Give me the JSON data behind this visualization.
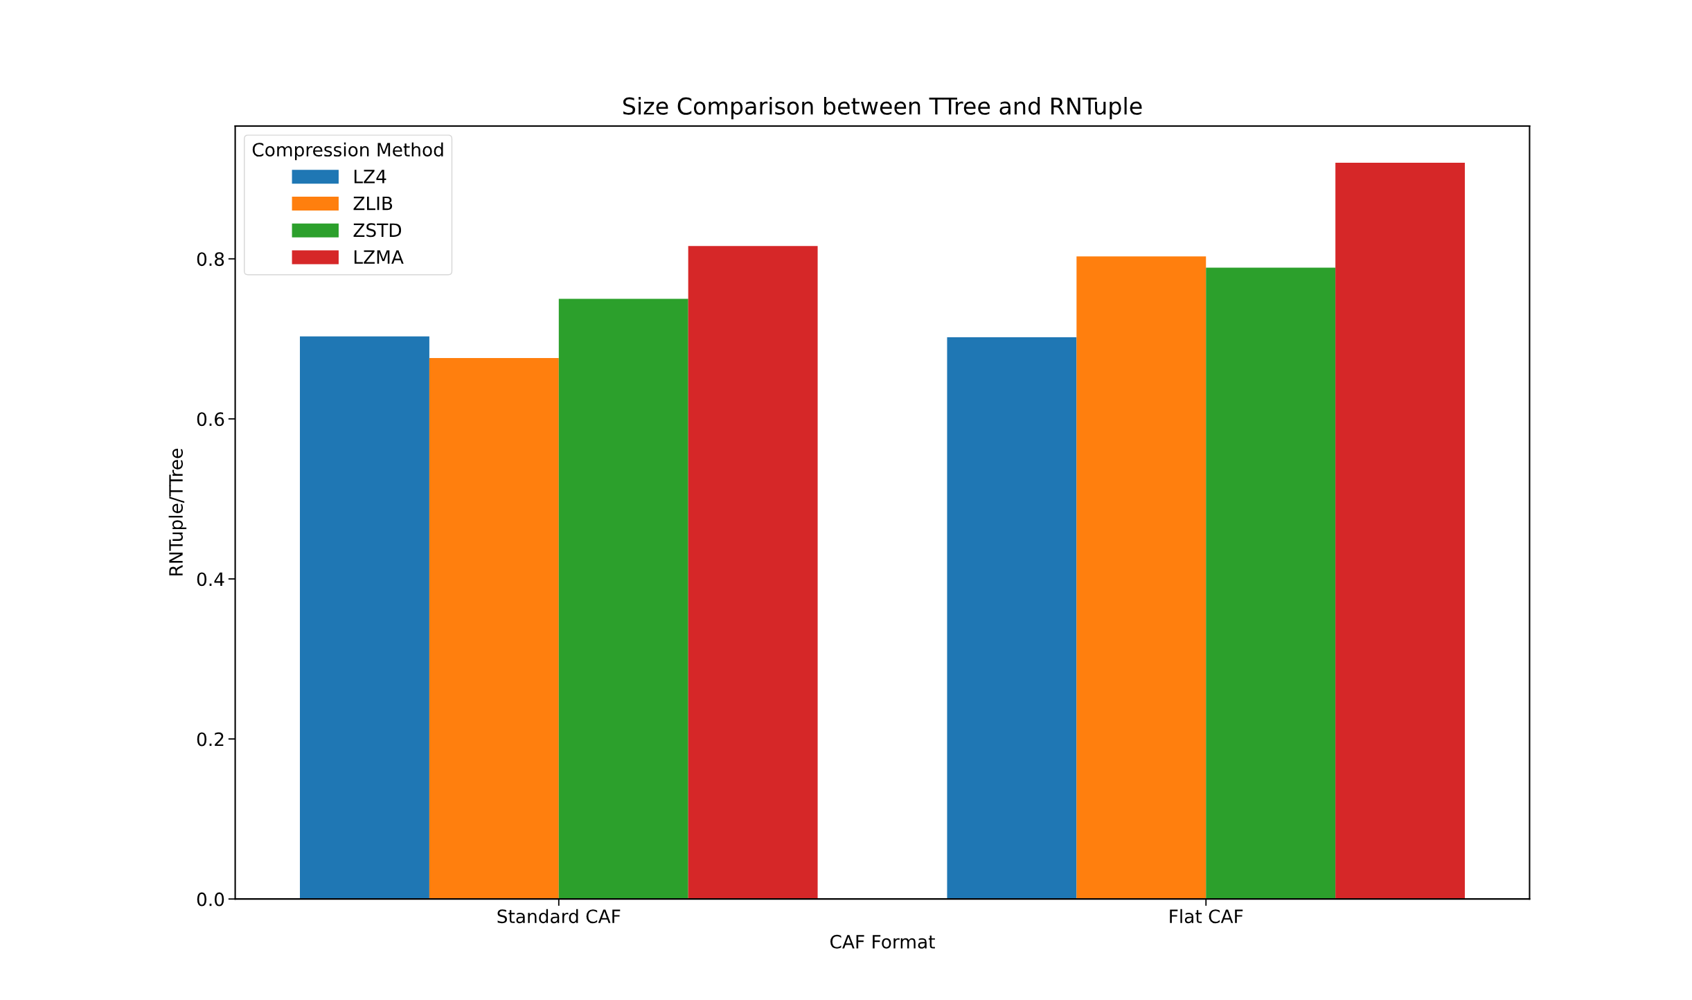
{
  "chart_data": {
    "type": "bar",
    "title": "Size Comparison between TTree and RNTuple",
    "xlabel": "CAF Format",
    "ylabel": "RNTuple/TTree",
    "legend_title": "Compression Method",
    "categories": [
      "Standard CAF",
      "Flat CAF"
    ],
    "series": [
      {
        "name": "LZ4",
        "color": "#1f77b4",
        "values": [
          0.703,
          0.702
        ]
      },
      {
        "name": "ZLIB",
        "color": "#ff7f0e",
        "values": [
          0.676,
          0.803
        ]
      },
      {
        "name": "ZSTD",
        "color": "#2ca02c",
        "values": [
          0.75,
          0.789
        ]
      },
      {
        "name": "LZMA",
        "color": "#d62728",
        "values": [
          0.816,
          0.92
        ]
      }
    ],
    "ylim": [
      0,
      0.966
    ],
    "yticks": [
      {
        "value": 0,
        "label": "0.0"
      },
      0.2,
      0.4,
      0.6,
      0.8
    ],
    "legend": "top left",
    "grid": false
  }
}
